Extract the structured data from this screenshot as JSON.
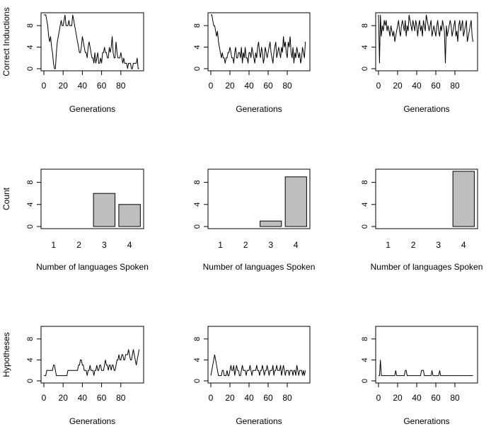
{
  "chart_data": [
    {
      "type": "line",
      "ylabel": "Correct Inductions",
      "xlabel": "Generations",
      "xlim": [
        0,
        100
      ],
      "ylim": [
        0,
        10
      ],
      "xticks": [
        0,
        20,
        40,
        60,
        80
      ],
      "yticks": [
        0,
        4,
        8
      ],
      "y": [
        10,
        10,
        10,
        9,
        8,
        6,
        5,
        6,
        4,
        3,
        1,
        0,
        0,
        3,
        5,
        6,
        7,
        8,
        9,
        8,
        8,
        9,
        10,
        8,
        8,
        8,
        9,
        8,
        8,
        8,
        10,
        9,
        8,
        7,
        6,
        5,
        4,
        3,
        3,
        4,
        6,
        5,
        4,
        3,
        3,
        2,
        4,
        5,
        4,
        3,
        2,
        2,
        1,
        3,
        1,
        2,
        3,
        1,
        1,
        2,
        1,
        3,
        3,
        4,
        3,
        3,
        2,
        2,
        4,
        3,
        4,
        6,
        3,
        2,
        2,
        5,
        3,
        2,
        2,
        2,
        3,
        2,
        1,
        2,
        1,
        1,
        1,
        0,
        1,
        1,
        1,
        0,
        0,
        1,
        1,
        1,
        1,
        2,
        0,
        0
      ]
    },
    {
      "type": "line",
      "ylabel": "",
      "xlabel": "Generations",
      "xlim": [
        0,
        100
      ],
      "ylim": [
        0,
        10
      ],
      "xticks": [
        0,
        20,
        40,
        60,
        80
      ],
      "yticks": [
        0,
        4,
        8
      ],
      "y": [
        10,
        10,
        9,
        8,
        8,
        7,
        6,
        7,
        5,
        4,
        3,
        2,
        3,
        2,
        2,
        1,
        2,
        2,
        3,
        3,
        4,
        3,
        2,
        2,
        1,
        3,
        4,
        2,
        2,
        3,
        3,
        2,
        4,
        1,
        3,
        2,
        4,
        2,
        2,
        1,
        3,
        3,
        2,
        4,
        3,
        2,
        1,
        3,
        2,
        4,
        5,
        3,
        2,
        4,
        3,
        1,
        2,
        4,
        3,
        2,
        3,
        4,
        5,
        3,
        2,
        1,
        3,
        4,
        5,
        2,
        3,
        4,
        3,
        2,
        4,
        3,
        6,
        4,
        5,
        3,
        2,
        5,
        4,
        6,
        3,
        2,
        4,
        1,
        3,
        2,
        4,
        3,
        2,
        3,
        1,
        2,
        4,
        3,
        2,
        5
      ]
    },
    {
      "type": "line",
      "ylabel": "",
      "xlabel": "Generations",
      "xlim": [
        0,
        100
      ],
      "ylim": [
        0,
        10
      ],
      "xticks": [
        0,
        20,
        40,
        60,
        80
      ],
      "yticks": [
        0,
        4,
        8
      ],
      "y": [
        10,
        1,
        10,
        6,
        8,
        7,
        9,
        8,
        9,
        7,
        8,
        7,
        6,
        8,
        7,
        6,
        7,
        5,
        6,
        7,
        8,
        9,
        7,
        6,
        8,
        9,
        8,
        7,
        9,
        6,
        8,
        7,
        10,
        9,
        8,
        7,
        9,
        8,
        7,
        9,
        8,
        6,
        8,
        9,
        7,
        8,
        6,
        9,
        8,
        7,
        10,
        9,
        8,
        7,
        8,
        9,
        6,
        7,
        8,
        7,
        6,
        8,
        9,
        7,
        6,
        8,
        7,
        9,
        8,
        7,
        1,
        8,
        6,
        7,
        8,
        9,
        8,
        6,
        7,
        8,
        9,
        6,
        7,
        5,
        8,
        9,
        7,
        8,
        9,
        6,
        7,
        8,
        9,
        5,
        6,
        7,
        8,
        9,
        6,
        5
      ]
    },
    {
      "type": "bar",
      "ylabel": "Count",
      "xlabel": "Number of languages Spoken",
      "categories": [
        "1",
        "2",
        "3",
        "4"
      ],
      "values": [
        0,
        0,
        6,
        4
      ],
      "ylim": [
        0,
        10
      ],
      "yticks": [
        0,
        4,
        8
      ]
    },
    {
      "type": "bar",
      "ylabel": "",
      "xlabel": "Number of languages Spoken",
      "categories": [
        "1",
        "2",
        "3",
        "4"
      ],
      "values": [
        0,
        0,
        1,
        9
      ],
      "ylim": [
        0,
        10
      ],
      "yticks": [
        0,
        4,
        8
      ]
    },
    {
      "type": "bar",
      "ylabel": "",
      "xlabel": "Number of languages Spoken",
      "categories": [
        "1",
        "2",
        "3",
        "4"
      ],
      "values": [
        0,
        0,
        0,
        10
      ],
      "ylim": [
        0,
        10
      ],
      "yticks": [
        0,
        4,
        8
      ]
    },
    {
      "type": "line",
      "ylabel": "Hypotheses",
      "xlabel": "Generations",
      "xlim": [
        0,
        100
      ],
      "ylim": [
        0,
        10
      ],
      "xticks": [
        0,
        20,
        40,
        60,
        80
      ],
      "yticks": [
        0,
        4,
        8
      ],
      "y": [
        1,
        1,
        1,
        2,
        2,
        2,
        2,
        2,
        2,
        2,
        3,
        3,
        2,
        1,
        1,
        1,
        1,
        1,
        1,
        1,
        1,
        1,
        1,
        1,
        1,
        2,
        2,
        2,
        2,
        2,
        2,
        2,
        2,
        2,
        2,
        2,
        3,
        3,
        4,
        4,
        3,
        3,
        2,
        2,
        2,
        1,
        2,
        2,
        3,
        2,
        2,
        2,
        1,
        2,
        2,
        3,
        2,
        2,
        3,
        3,
        2,
        2,
        2,
        3,
        4,
        3,
        3,
        2,
        3,
        3,
        2,
        3,
        3,
        2,
        2,
        3,
        4,
        4,
        5,
        4,
        4,
        5,
        5,
        4,
        4,
        5,
        5,
        5,
        6,
        5,
        4,
        4,
        5,
        6,
        5,
        4,
        3,
        4,
        5,
        6
      ]
    },
    {
      "type": "line",
      "ylabel": "",
      "xlabel": "Generations",
      "xlim": [
        0,
        100
      ],
      "ylim": [
        0,
        10
      ],
      "xticks": [
        0,
        20,
        40,
        60,
        80
      ],
      "yticks": [
        0,
        4,
        8
      ],
      "y": [
        1,
        2,
        3,
        4,
        5,
        4,
        3,
        2,
        1,
        1,
        1,
        1,
        2,
        2,
        1,
        1,
        1,
        2,
        1,
        1,
        2,
        3,
        2,
        2,
        3,
        1,
        2,
        3,
        2,
        2,
        1,
        1,
        2,
        3,
        2,
        2,
        2,
        1,
        2,
        2,
        2,
        3,
        2,
        1,
        2,
        2,
        2,
        2,
        3,
        2,
        2,
        1,
        2,
        2,
        3,
        2,
        1,
        2,
        2,
        3,
        2,
        1,
        2,
        2,
        2,
        3,
        1,
        2,
        2,
        3,
        2,
        2,
        2,
        3,
        1,
        2,
        3,
        2,
        1,
        2,
        2,
        2,
        1,
        2,
        2,
        2,
        1,
        2,
        2,
        1,
        3,
        2,
        1,
        2,
        2,
        2,
        1,
        2,
        1,
        2
      ]
    },
    {
      "type": "line",
      "ylabel": "",
      "xlabel": "Generations",
      "xlim": [
        0,
        100
      ],
      "ylim": [
        0,
        10
      ],
      "xticks": [
        0,
        20,
        40,
        60,
        80
      ],
      "yticks": [
        0,
        4,
        8
      ],
      "y": [
        1,
        1,
        4,
        1,
        1,
        1,
        1,
        1,
        1,
        1,
        1,
        1,
        1,
        1,
        1,
        1,
        1,
        1,
        2,
        1,
        1,
        1,
        1,
        1,
        1,
        1,
        1,
        1,
        2,
        2,
        1,
        1,
        1,
        1,
        1,
        1,
        1,
        1,
        1,
        1,
        1,
        1,
        1,
        1,
        1,
        2,
        2,
        2,
        1,
        1,
        1,
        1,
        1,
        1,
        1,
        1,
        2,
        1,
        1,
        1,
        1,
        1,
        1,
        1,
        2,
        1,
        1,
        1,
        1,
        1,
        1,
        1,
        1,
        1,
        1,
        1,
        1,
        1,
        1,
        1,
        1,
        1,
        1,
        1,
        1,
        1,
        1,
        1,
        1,
        1,
        1,
        1,
        1,
        1,
        1,
        1,
        1,
        1,
        1,
        1
      ]
    }
  ]
}
